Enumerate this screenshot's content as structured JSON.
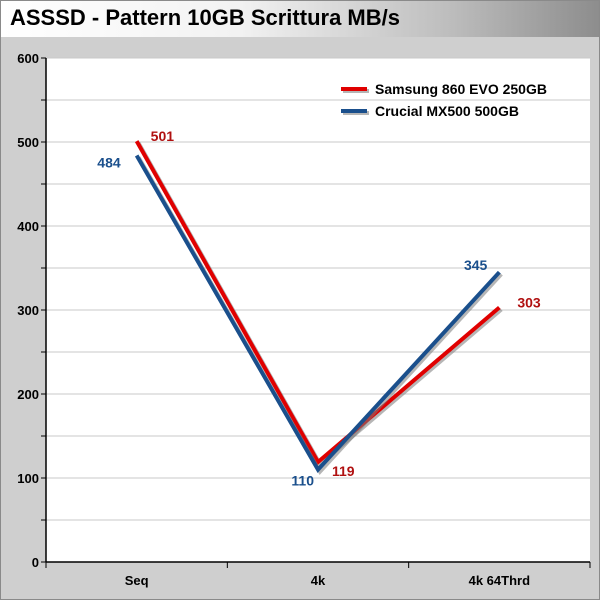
{
  "chart_data": {
    "type": "line",
    "title": "ASSSD - Pattern 10GB Scrittura MB/s",
    "categories": [
      "Seq",
      "4k",
      "4k 64Thrd"
    ],
    "ylim": [
      0,
      600
    ],
    "yticks": [
      "0",
      "100",
      "200",
      "300",
      "400",
      "500",
      "600"
    ],
    "grid": true,
    "legend_position": "top-right",
    "series": [
      {
        "name": "Samsung 860 EVO 250GB",
        "color": "#e00000",
        "label_color": "#b01010",
        "values": [
          501,
          119,
          303
        ],
        "labels": [
          "501",
          "119",
          "303"
        ]
      },
      {
        "name": "Crucial MX500 500GB",
        "color": "#1a4f8c",
        "label_color": "#1a4f8c",
        "values": [
          484,
          110,
          345
        ],
        "labels": [
          "484",
          "110",
          "345"
        ]
      }
    ]
  }
}
